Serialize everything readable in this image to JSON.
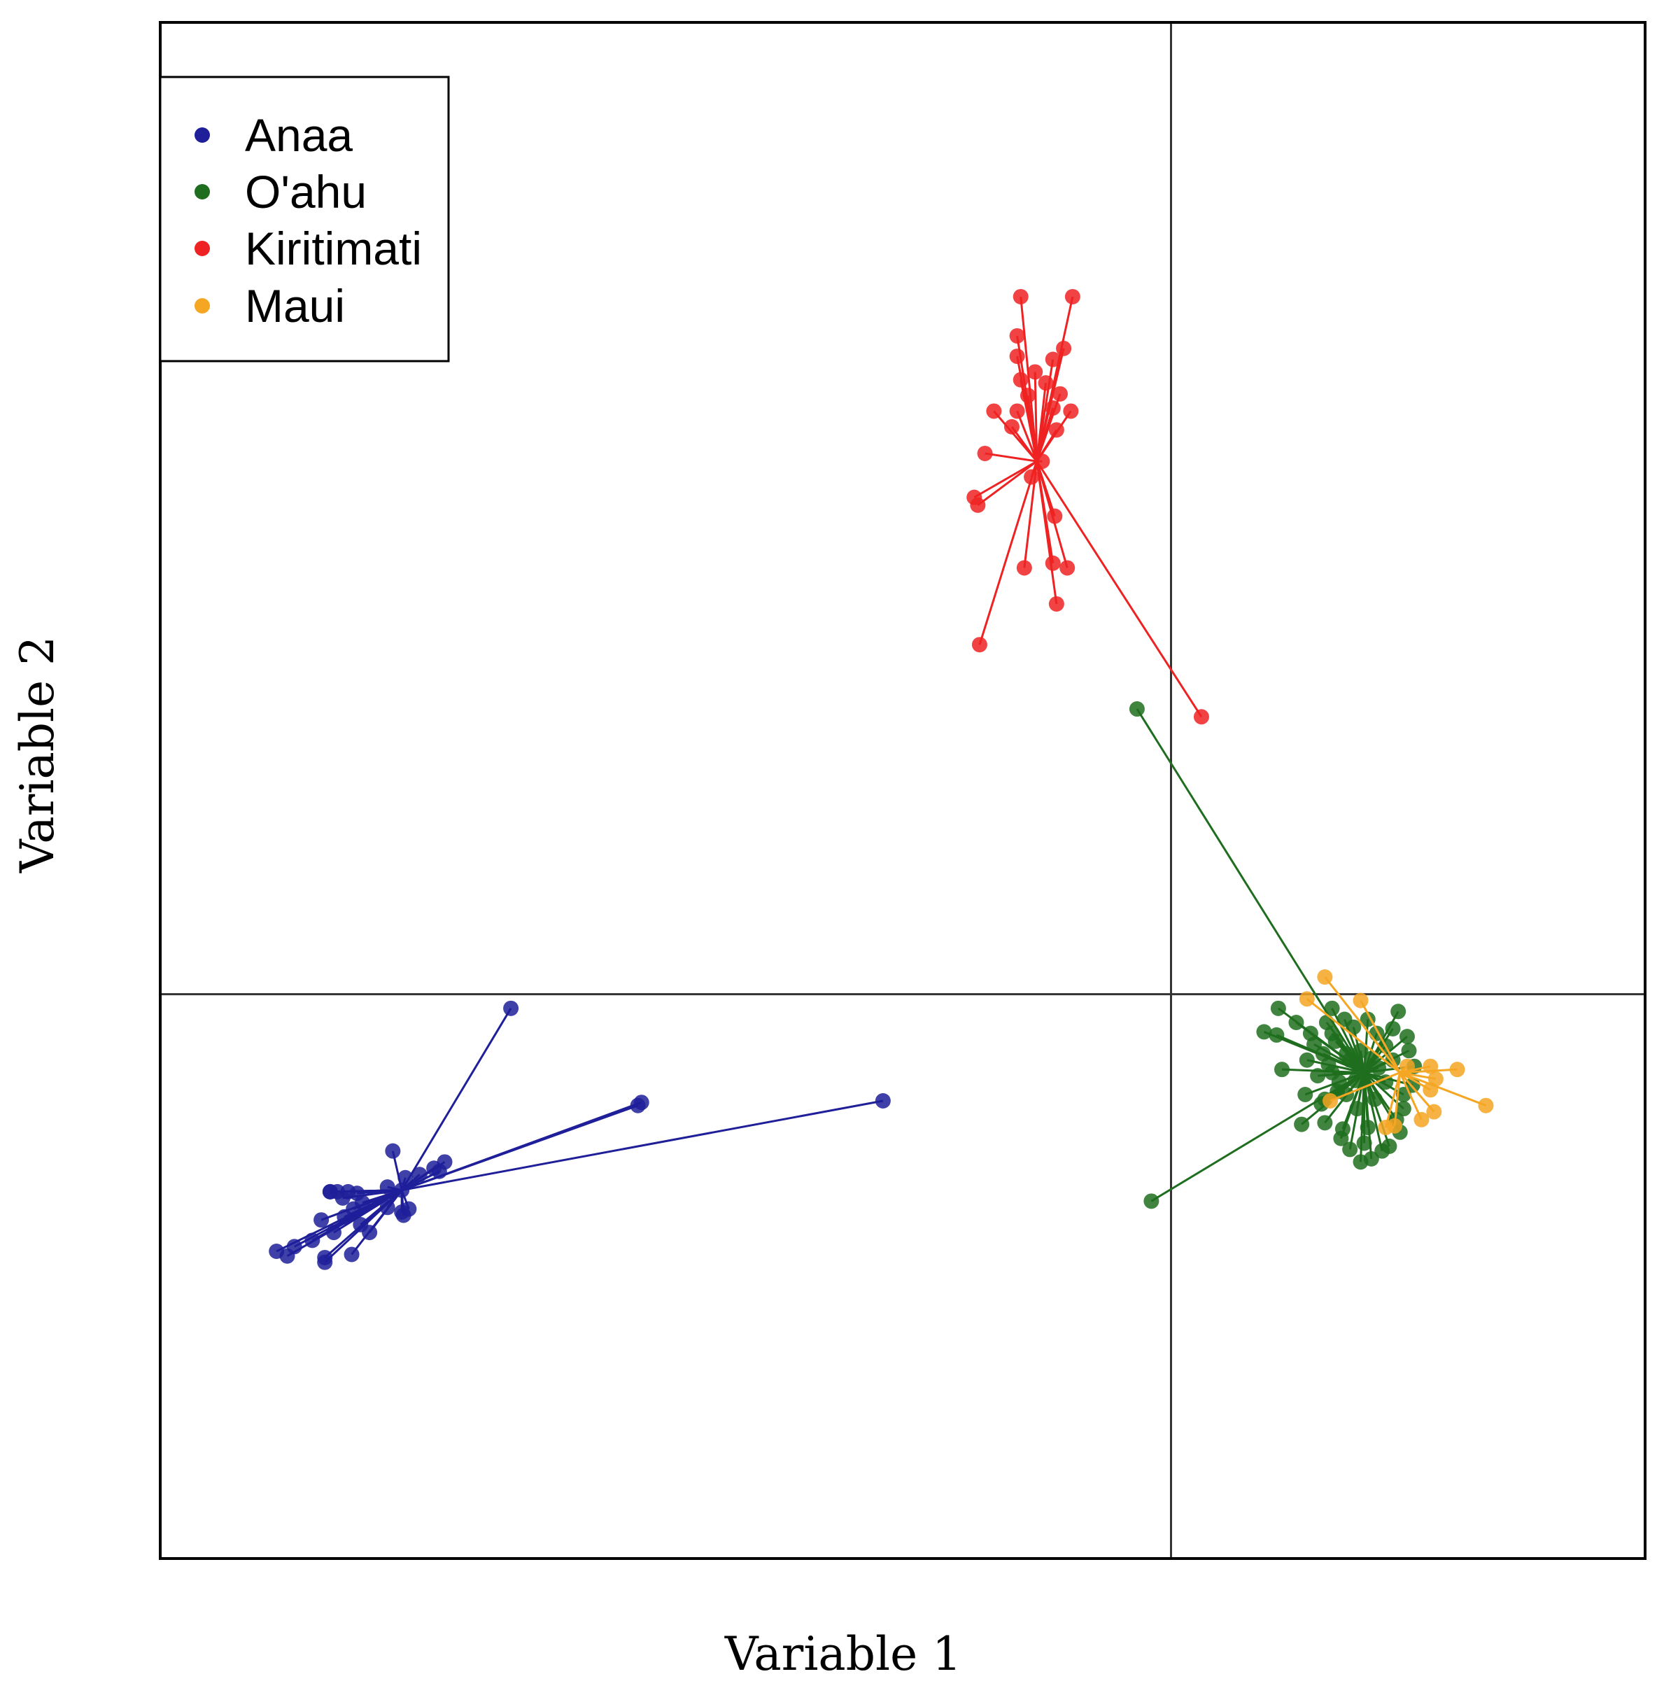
{
  "chart_data": {
    "type": "scatter",
    "title": "",
    "xlabel": "Variable 1",
    "ylabel": "Variable 2",
    "xlim": [
      -5.65,
      2.65
    ],
    "ylim": [
      -3.6,
      6.2
    ],
    "grid": false,
    "reference_lines": {
      "x": 0,
      "y": 0
    },
    "legend": {
      "position": "top-left",
      "entries": [
        {
          "label": "Anaa",
          "color": "#1f1f9a"
        },
        {
          "label": "O'ahu",
          "color": "#1f6e1f"
        },
        {
          "label": "Kiritimati",
          "color": "#ee2222"
        },
        {
          "label": "Maui",
          "color": "#f5a623"
        }
      ]
    },
    "series": [
      {
        "name": "Anaa",
        "color": "#1f1f9a",
        "centroid": [
          -4.3,
          -1.25
        ],
        "points": [
          [
            -3.69,
            -0.09
          ],
          [
            -2.96,
            -0.69
          ],
          [
            -2.98,
            -0.71
          ],
          [
            -1.61,
            -0.68
          ],
          [
            -4.3,
            -1.25
          ],
          [
            -4.28,
            -1.17
          ],
          [
            -4.35,
            -1.0
          ],
          [
            -4.06,
            -1.07
          ],
          [
            -4.09,
            -1.13
          ],
          [
            -4.12,
            -1.11
          ],
          [
            -4.2,
            -1.15
          ],
          [
            -4.38,
            -1.23
          ],
          [
            -4.55,
            -1.27
          ],
          [
            -4.6,
            -1.26
          ],
          [
            -4.66,
            -1.26
          ],
          [
            -4.7,
            -1.26
          ],
          [
            -4.63,
            -1.3
          ],
          [
            -4.52,
            -1.33
          ],
          [
            -4.57,
            -1.37
          ],
          [
            -4.62,
            -1.42
          ],
          [
            -4.53,
            -1.47
          ],
          [
            -4.48,
            -1.52
          ],
          [
            -4.68,
            -1.52
          ],
          [
            -4.8,
            -1.57
          ],
          [
            -4.9,
            -1.61
          ],
          [
            -4.94,
            -1.67
          ],
          [
            -4.73,
            -1.68
          ],
          [
            -4.73,
            -1.71
          ],
          [
            -4.58,
            -1.66
          ],
          [
            -4.29,
            -1.41
          ],
          [
            -4.26,
            -1.37
          ],
          [
            -4.3,
            -1.39
          ],
          [
            -4.38,
            -1.36
          ],
          [
            -4.75,
            -1.44
          ],
          [
            -5.0,
            -1.64
          ],
          [
            -4.7,
            -1.26
          ]
        ]
      },
      {
        "name": "Kiritimati",
        "color": "#ee2222",
        "centroid": [
          -0.75,
          3.4
        ],
        "points": [
          [
            -0.84,
            4.45
          ],
          [
            -0.55,
            4.45
          ],
          [
            -0.86,
            4.2
          ],
          [
            -0.6,
            4.12
          ],
          [
            -0.86,
            4.07
          ],
          [
            -0.66,
            4.05
          ],
          [
            -0.76,
            3.97
          ],
          [
            -0.84,
            3.92
          ],
          [
            -0.7,
            3.9
          ],
          [
            -0.62,
            3.83
          ],
          [
            -0.8,
            3.82
          ],
          [
            -0.66,
            3.74
          ],
          [
            -0.99,
            3.72
          ],
          [
            -0.86,
            3.72
          ],
          [
            -0.56,
            3.72
          ],
          [
            -0.89,
            3.62
          ],
          [
            -0.64,
            3.6
          ],
          [
            -1.04,
            3.45
          ],
          [
            -0.72,
            3.4
          ],
          [
            -0.78,
            3.3
          ],
          [
            -1.1,
            3.17
          ],
          [
            -1.08,
            3.12
          ],
          [
            -0.65,
            3.05
          ],
          [
            -0.66,
            2.75
          ],
          [
            -0.82,
            2.72
          ],
          [
            -0.58,
            2.72
          ],
          [
            -0.64,
            2.49
          ],
          [
            -1.07,
            2.23
          ],
          [
            0.17,
            1.77
          ]
        ]
      },
      {
        "name": "O'ahu",
        "color": "#1f6e1f",
        "centroid": [
          1.08,
          -0.5
        ],
        "points": [
          [
            -0.19,
            1.82
          ],
          [
            -0.11,
            -1.32
          ],
          [
            0.6,
            -0.09
          ],
          [
            0.78,
            -0.25
          ],
          [
            0.52,
            -0.24
          ],
          [
            0.59,
            -0.26
          ],
          [
            0.62,
            -0.48
          ],
          [
            0.75,
            -0.64
          ],
          [
            0.73,
            -0.83
          ],
          [
            0.86,
            -0.67
          ],
          [
            0.86,
            -0.82
          ],
          [
            0.96,
            -0.86
          ],
          [
            1.0,
            -0.99
          ],
          [
            1.06,
            -1.07
          ],
          [
            1.12,
            -1.05
          ],
          [
            1.18,
            -1.0
          ],
          [
            1.22,
            -0.97
          ],
          [
            1.28,
            -0.88
          ],
          [
            1.3,
            -0.73
          ],
          [
            1.35,
            -0.58
          ],
          [
            1.36,
            -0.46
          ],
          [
            1.33,
            -0.36
          ],
          [
            1.24,
            -0.22
          ],
          [
            1.27,
            -0.11
          ],
          [
            1.1,
            -0.16
          ],
          [
            0.97,
            -0.16
          ],
          [
            0.9,
            -0.09
          ],
          [
            0.87,
            -0.18
          ],
          [
            0.8,
            -0.32
          ],
          [
            0.98,
            -0.38
          ],
          [
            1.03,
            -0.55
          ],
          [
            1.12,
            -0.41
          ],
          [
            1.04,
            -0.73
          ],
          [
            0.93,
            -0.62
          ],
          [
            0.82,
            -0.52
          ],
          [
            1.14,
            -0.67
          ],
          [
            1.2,
            -0.56
          ],
          [
            0.92,
            -0.3
          ],
          [
            1.15,
            -0.25
          ],
          [
            1.02,
            -0.21
          ],
          [
            0.88,
            -0.45
          ],
          [
            0.7,
            -0.18
          ],
          [
            1.24,
            -0.42
          ],
          [
            0.95,
            -0.92
          ],
          [
            1.1,
            -0.85
          ],
          [
            1.32,
            -0.27
          ],
          [
            0.84,
            -0.7
          ],
          [
            1.26,
            -0.8
          ],
          [
            1.0,
            -0.42
          ],
          [
            0.9,
            -0.5
          ],
          [
            0.94,
            -0.56
          ],
          [
            1.06,
            -0.36
          ],
          [
            1.16,
            -0.47
          ],
          [
            0.98,
            -0.64
          ],
          [
            0.85,
            -0.38
          ],
          [
            1.2,
            -0.33
          ],
          [
            1.08,
            -0.95
          ],
          [
            0.76,
            -0.42
          ],
          [
            0.9,
            -0.25
          ],
          [
            1.3,
            -0.64
          ]
        ]
      },
      {
        "name": "Maui",
        "color": "#f5a623",
        "centroid": [
          1.28,
          -0.5
        ],
        "points": [
          [
            0.86,
            0.11
          ],
          [
            0.76,
            -0.03
          ],
          [
            1.06,
            -0.04
          ],
          [
            1.32,
            -0.46
          ],
          [
            1.45,
            -0.46
          ],
          [
            1.6,
            -0.48
          ],
          [
            1.48,
            -0.54
          ],
          [
            1.45,
            -0.61
          ],
          [
            1.76,
            -0.71
          ],
          [
            1.47,
            -0.75
          ],
          [
            1.4,
            -0.8
          ],
          [
            1.2,
            -0.85
          ],
          [
            1.25,
            -0.84
          ],
          [
            0.89,
            -0.68
          ]
        ]
      }
    ]
  }
}
